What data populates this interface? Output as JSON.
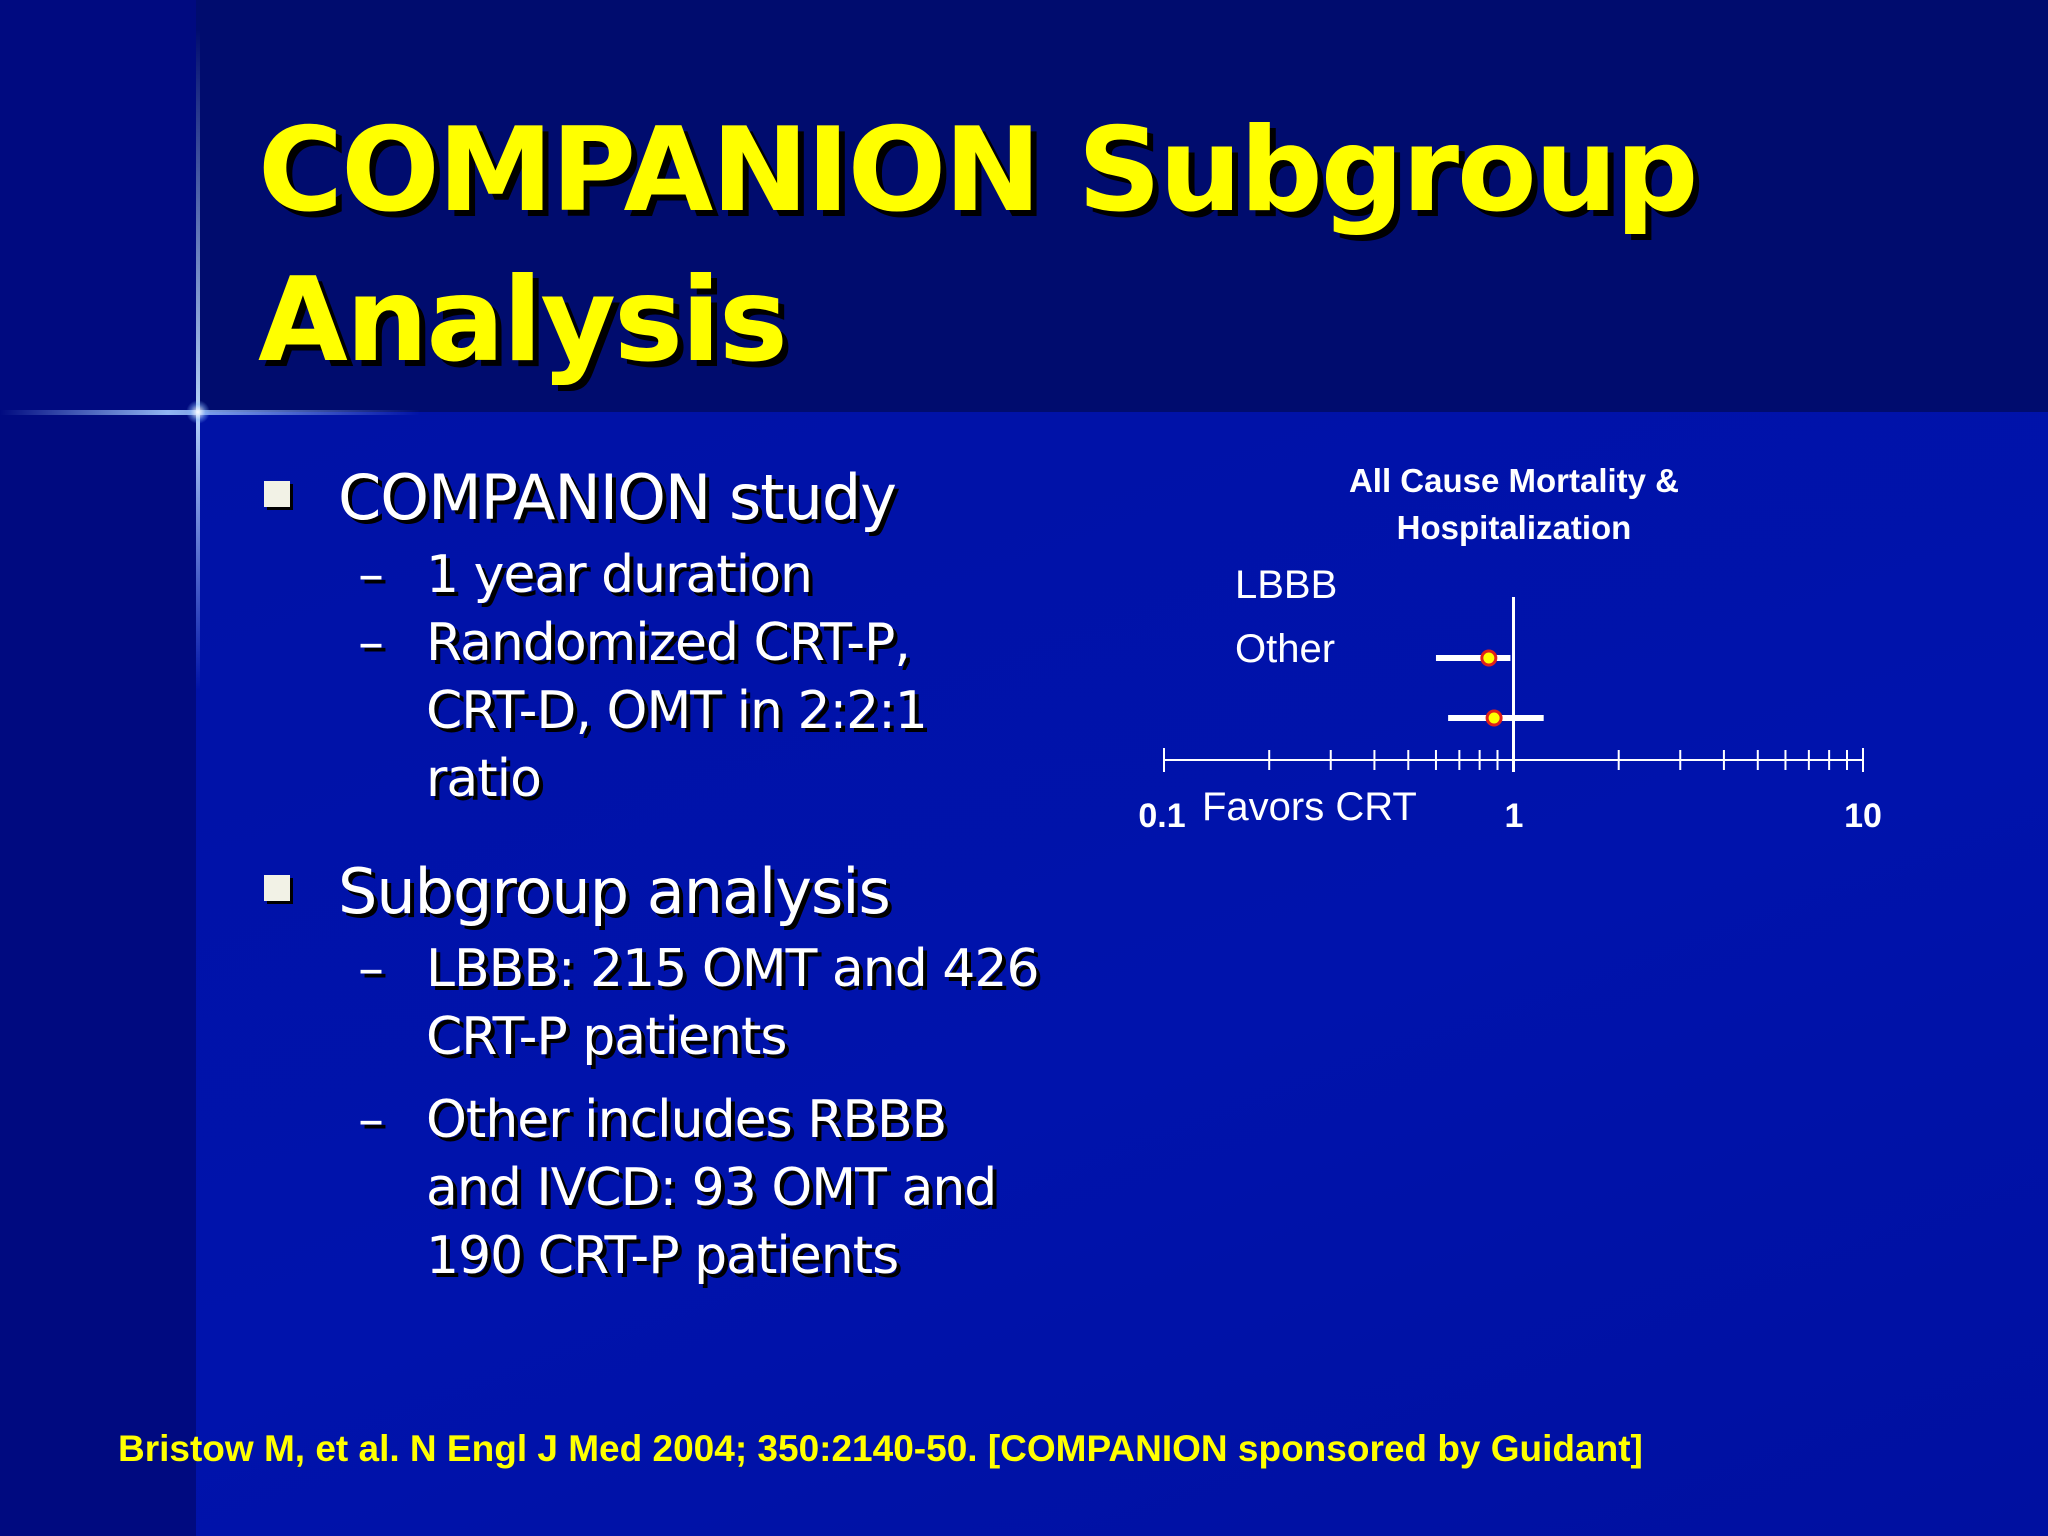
{
  "slide": {
    "title_lines": [
      "COMPANION Subgroup",
      "Analysis"
    ],
    "bullets": [
      {
        "text": "COMPANION study",
        "subitems": [
          {
            "lines": [
              "1 year duration"
            ]
          },
          {
            "lines": [
              "Randomized CRT-P,",
              "CRT-D, OMT in 2:2:1",
              "ratio"
            ]
          }
        ]
      },
      {
        "text": "Subgroup analysis",
        "subitems": [
          {
            "lines": [
              "LBBB: 215 OMT and 426",
              "CRT-P patients"
            ]
          },
          {
            "lines": [
              "Other includes RBBB",
              "and IVCD: 93 OMT and",
              "190 CRT-P patients"
            ]
          }
        ]
      }
    ],
    "dash_glyph": "–",
    "citation": "Bristow M, et al. N Engl J Med 2004; 350:2140-50. [COMPANION sponsored by Guidant]"
  },
  "chart_data": {
    "type": "forest",
    "title_lines": [
      "All Cause Mortality &",
      "Hospitalization"
    ],
    "x_scale": "log",
    "xlim": [
      0.1,
      10
    ],
    "x_tick_labels": [
      {
        "value": 0.1,
        "label": "0.1"
      },
      {
        "value": 1,
        "label": "1"
      },
      {
        "value": 10,
        "label": "10"
      }
    ],
    "reference_line": 1,
    "favors_label": "Favors CRT",
    "row_labels": [
      "LBBB",
      "Other"
    ],
    "estimates": [
      {
        "point": 0.85,
        "ci_low": 0.6,
        "ci_high": 0.98
      },
      {
        "point": 0.88,
        "ci_low": 0.65,
        "ci_high": 1.22
      }
    ],
    "colors": {
      "axis": "#ffffff",
      "marker_fill": "#ffff00",
      "marker_stroke": "#e0201a",
      "ci_line": "#ffffff"
    }
  }
}
